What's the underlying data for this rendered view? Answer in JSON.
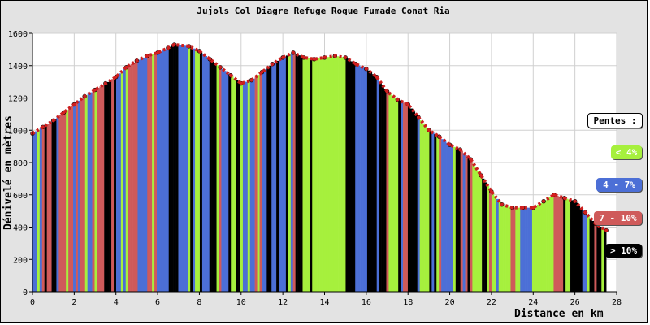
{
  "chart_data": {
    "type": "area",
    "title": "Jujols Col Diagre Refuge Roque Fumade Conat Ria",
    "xlabel": "Distance en km",
    "ylabel": "Dénivelé en mètres",
    "xlim": [
      0,
      28
    ],
    "ylim": [
      0,
      1600
    ],
    "xticks": [
      "0",
      "2",
      "4",
      "6",
      "8",
      "10",
      "12",
      "14",
      "16",
      "18",
      "20",
      "22",
      "24",
      "26",
      "28"
    ],
    "yticks": [
      "0",
      "200",
      "400",
      "600",
      "800",
      "1000",
      "1200",
      "1400",
      "1600"
    ],
    "grid": true,
    "legend_placement": "right",
    "legend_title": "Pentes :",
    "legend": [
      {
        "label": "< 4%",
        "color": "#a6f03d",
        "text_color": "#ffffff"
      },
      {
        "label": "4 - 7%",
        "color": "#4c6fd6",
        "text_color": "#ffffff"
      },
      {
        "label": "7 - 10%",
        "color": "#cf5a5a",
        "text_color": "#ffffff"
      },
      {
        "label": "> 10%",
        "color": "#000000",
        "text_color": "#ffffff"
      }
    ],
    "profile": {
      "x": [
        0,
        0.5,
        1,
        1.5,
        2,
        2.5,
        3,
        3.5,
        4,
        4.5,
        5,
        5.5,
        6,
        6.5,
        6.8,
        7.5,
        8,
        8.5,
        9,
        9.5,
        10,
        10.5,
        11,
        11.5,
        12,
        12.5,
        13,
        13.5,
        14,
        14.5,
        15,
        15.5,
        16,
        16.5,
        17,
        17.5,
        18,
        18.5,
        19,
        19.5,
        20,
        20.5,
        21,
        21.5,
        22,
        22.5,
        23,
        23.5,
        24,
        24.5,
        25,
        25.5,
        26,
        26.5,
        27,
        27.5
      ],
      "y": [
        980,
        1020,
        1060,
        1110,
        1160,
        1210,
        1250,
        1290,
        1330,
        1390,
        1430,
        1460,
        1480,
        1510,
        1530,
        1520,
        1490,
        1440,
        1390,
        1340,
        1290,
        1310,
        1360,
        1410,
        1450,
        1480,
        1450,
        1440,
        1450,
        1460,
        1450,
        1410,
        1380,
        1330,
        1240,
        1190,
        1160,
        1080,
        1000,
        960,
        910,
        880,
        820,
        720,
        620,
        540,
        520,
        520,
        520,
        560,
        600,
        580,
        560,
        490,
        420,
        380
      ],
      "slope_classes": [
        1,
        2,
        3,
        2,
        2,
        1,
        2,
        3,
        1,
        2,
        1,
        2,
        1,
        3,
        1,
        0,
        1,
        3,
        1,
        3,
        0,
        2,
        3,
        1,
        0,
        3,
        0,
        0,
        0,
        0,
        3,
        1,
        3,
        3,
        0,
        3,
        3,
        0,
        3,
        1,
        3,
        3,
        0,
        3,
        0,
        0,
        0,
        1,
        0,
        0,
        2,
        3,
        3,
        3,
        3,
        0
      ]
    }
  }
}
